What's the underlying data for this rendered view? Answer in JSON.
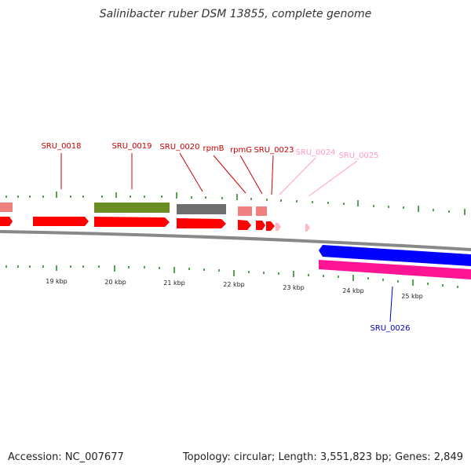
{
  "title": "Salinibacter ruber DSM 13855, complete genome",
  "footer": {
    "accession": "Accession: NC_007677",
    "topology": "Topology: circular; Length: 3,551,823 bp; Genes: 2,849"
  },
  "colors": {
    "forward_cds": "#ff0000",
    "forward_cds_light": "#f08080",
    "reverse_cds": "#0000ff",
    "reverse_cds_magenta": "#ff1493",
    "olive_feature": "#6b8e23",
    "gray_feature": "#6e6e6e",
    "pink_feature": "#ffb6c1",
    "backbone": "#888888",
    "tick_green": "#2e8b2e",
    "label_red": "#cc0000",
    "label_pink": "#ff99cc",
    "label_blue": "#0000cc"
  },
  "scale_labels": [
    "19 kbp",
    "20 kbp",
    "21 kbp",
    "22 kbp",
    "23 kbp",
    "24 kbp",
    "25 kbp"
  ],
  "gene_labels": [
    {
      "name": "SRU_0018",
      "tone": "red"
    },
    {
      "name": "SRU_0019",
      "tone": "red"
    },
    {
      "name": "SRU_0020",
      "tone": "red"
    },
    {
      "name": "rpmB",
      "tone": "red"
    },
    {
      "name": "rpmG",
      "tone": "red"
    },
    {
      "name": "SRU_0023",
      "tone": "red"
    },
    {
      "name": "SRU_0024",
      "tone": "pink"
    },
    {
      "name": "SRU_0025",
      "tone": "pink"
    },
    {
      "name": "SRU_0026",
      "tone": "blue"
    }
  ]
}
